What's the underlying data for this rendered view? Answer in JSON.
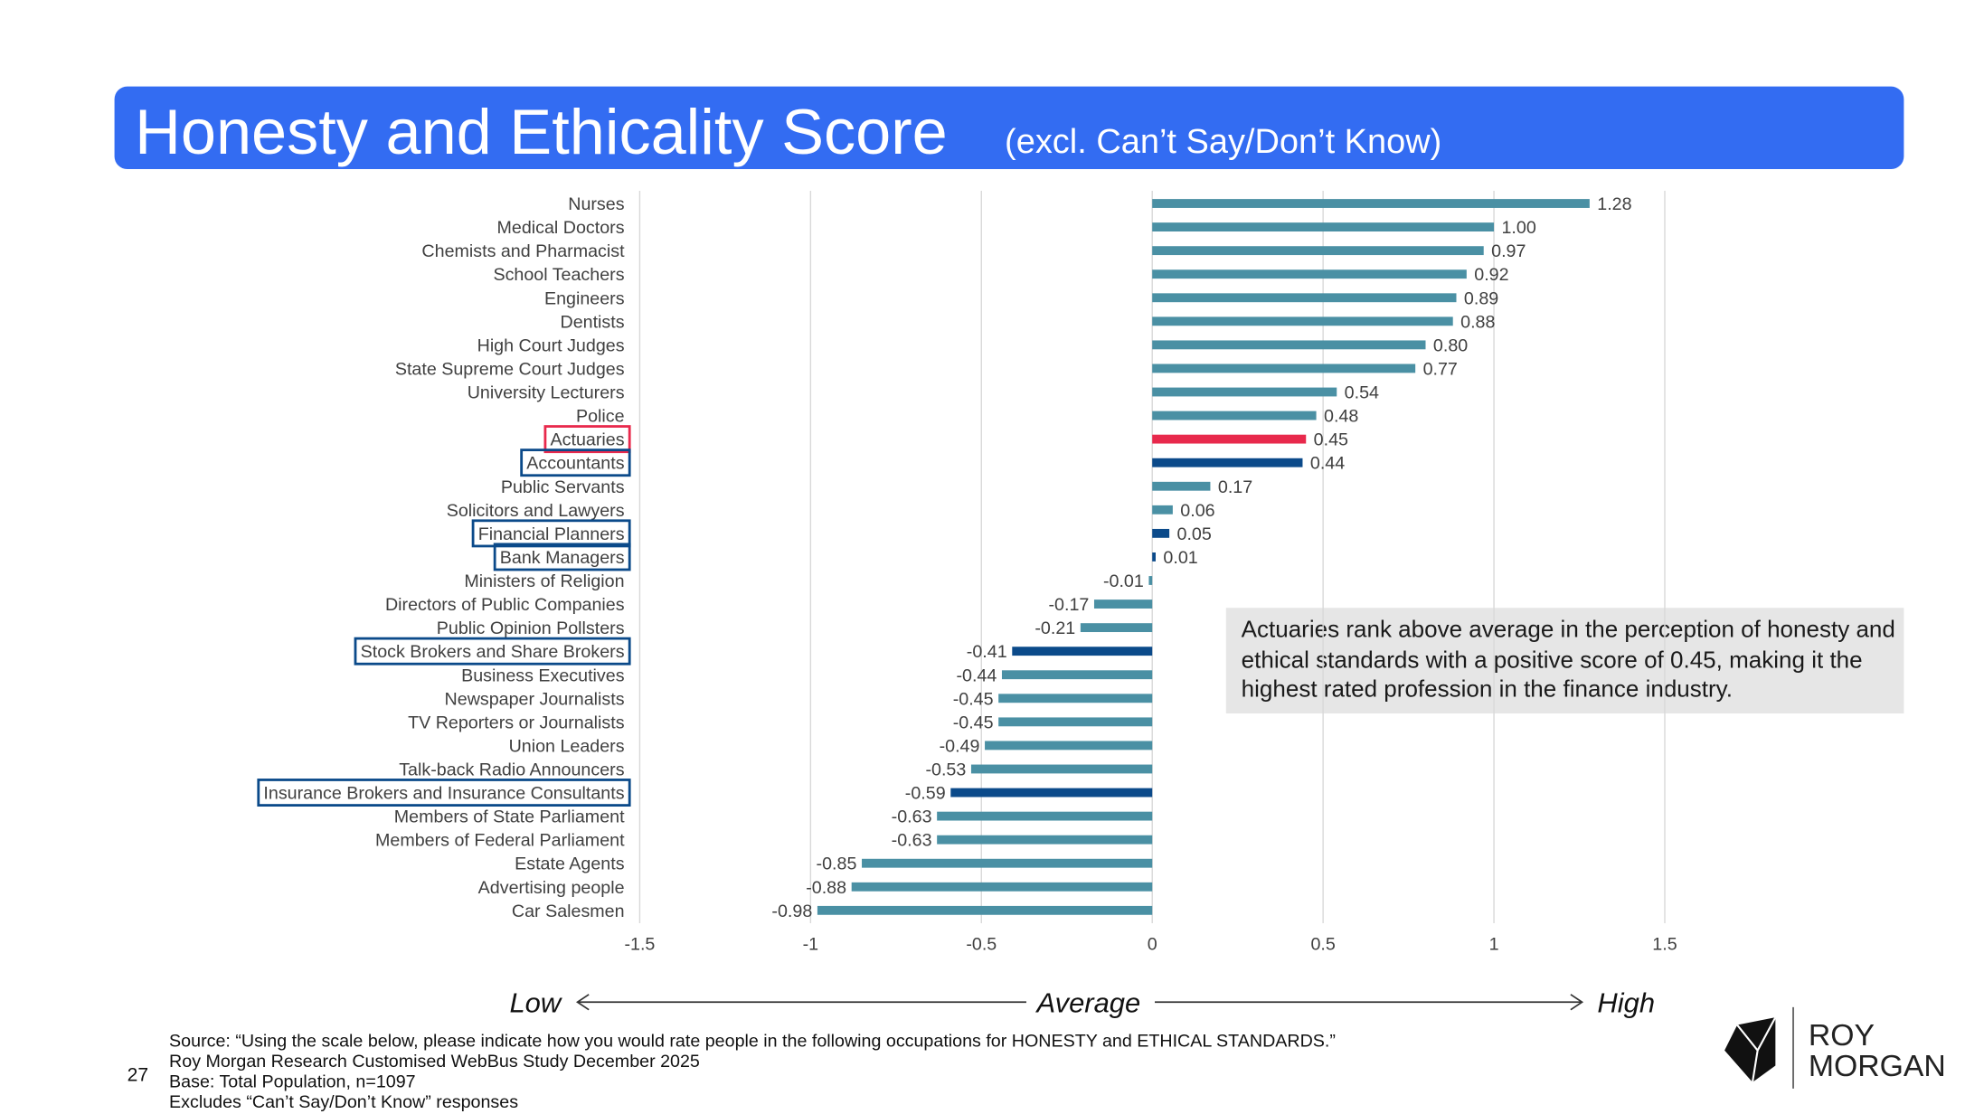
{
  "chart_data": {
    "type": "hbar",
    "title": "Honesty and Ethicality Score",
    "subtitle": "(excl. Can’t Say/Don’t Know)",
    "categories": [
      "Nurses",
      "Medical Doctors",
      "Chemists and Pharmacist",
      "School Teachers",
      "Engineers",
      "Dentists",
      "High Court Judges",
      "State Supreme Court Judges",
      "University Lecturers",
      "Police",
      "Actuaries",
      "Accountants",
      "Public Servants",
      "Solicitors and Lawyers",
      "Financial Planners",
      "Bank Managers",
      "Ministers of Religion",
      "Directors of Public Companies",
      "Public Opinion Pollsters",
      "Stock Brokers and Share Brokers",
      "Business Executives",
      "Newspaper Journalists",
      "TV Reporters or Journalists",
      "Union Leaders",
      "Talk-back Radio Announcers",
      "Insurance Brokers and Insurance Consultants",
      "Members of State Parliament",
      "Members of Federal Parliament",
      "Estate Agents",
      "Advertising people",
      "Car Salesmen"
    ],
    "values": [
      1.28,
      1.0,
      0.97,
      0.92,
      0.89,
      0.88,
      0.8,
      0.77,
      0.54,
      0.48,
      0.45,
      0.44,
      0.17,
      0.06,
      0.05,
      0.01,
      -0.01,
      -0.17,
      -0.21,
      -0.41,
      -0.44,
      -0.45,
      -0.45,
      -0.49,
      -0.53,
      -0.59,
      -0.63,
      -0.63,
      -0.85,
      -0.88,
      -0.98
    ],
    "value_labels": [
      "1.28",
      "1.00",
      "0.97",
      "0.92",
      "0.89",
      "0.88",
      "0.80",
      "0.77",
      "0.54",
      "0.48",
      "0.45",
      "0.44",
      "0.17",
      "0.06",
      "0.05",
      "0.01",
      "-0.01",
      "-0.17",
      "-0.21",
      "-0.41",
      "-0.44",
      "-0.45",
      "-0.45",
      "-0.49",
      "-0.53",
      "-0.59",
      "-0.63",
      "-0.63",
      "-0.85",
      "-0.88",
      "-0.98"
    ],
    "color": "#4a90a4",
    "colors": [
      "#4a90a4",
      "#4a90a4",
      "#4a90a4",
      "#4a90a4",
      "#4a90a4",
      "#4a90a4",
      "#4a90a4",
      "#4a90a4",
      "#4a90a4",
      "#4a90a4",
      "#e8294c",
      "#0b4a8a",
      "#4a90a4",
      "#4a90a4",
      "#0b4a8a",
      "#0b4a8a",
      "#4a90a4",
      "#4a90a4",
      "#4a90a4",
      "#0b4a8a",
      "#4a90a4",
      "#4a90a4",
      "#4a90a4",
      "#4a90a4",
      "#4a90a4",
      "#0b4a8a",
      "#4a90a4",
      "#4a90a4",
      "#4a90a4",
      "#4a90a4",
      "#4a90a4"
    ],
    "xlim": [
      -1.5,
      1.5
    ],
    "xticks": [
      -1.5,
      -1,
      -0.5,
      0,
      0.5,
      1,
      1.5
    ],
    "grid": true,
    "annotation": "Actuaries rank above average in the perception of honesty and ethical standards with a positive score of 0.45, making it the highest rated profession in the finance industry.",
    "scale_labels": [
      "Low",
      "Average",
      "High"
    ]
  },
  "footnotes": [
    "Source: “Using the scale below, please indicate how you would rate people in the following occupations for HONESTY and ETHICAL STANDARDS.”",
    "Roy Morgan Research Customised WebBus Study December 2025",
    "Base: Total Population, n=1097",
    "Excludes “Can’t Say/Don’t Know” responses"
  ],
  "page_number": "27",
  "logo": [
    "ROY",
    "MORGAN"
  ]
}
